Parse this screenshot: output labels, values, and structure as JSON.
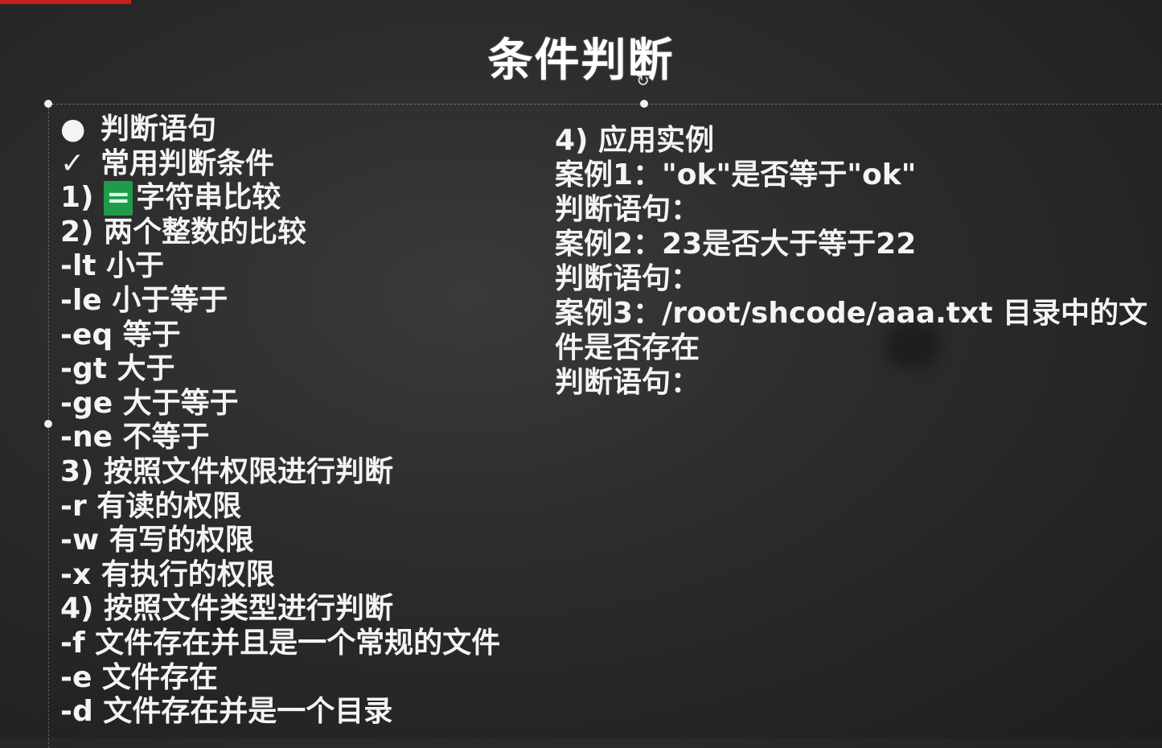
{
  "slide": {
    "title": "条件判断",
    "left": {
      "bullet_heading": "判断语句",
      "check_heading": "常用判断条件",
      "item1_prefix": "1)",
      "item1_mark": "=",
      "item1_text": "字符串比较",
      "lines": [
        "2) 两个整数的比较",
        "-lt 小于",
        "-le 小于等于",
        "-eq 等于",
        "-gt 大于",
        "-ge 大于等于",
        "-ne 不等于",
        "3) 按照文件权限进行判断",
        "-r 有读的权限",
        "-w 有写的权限",
        "-x 有执行的权限",
        "4) 按照文件类型进行判断",
        "-f 文件存在并且是一个常规的文件",
        "-e 文件存在",
        "-d 文件存在并是一个目录"
      ]
    },
    "right": {
      "lines": [
        "4) 应用实例",
        "案例1：\"ok\"是否等于\"ok\"",
        "判断语句：",
        "案例2：23是否大于等于22",
        "判断语句：",
        "案例3：/root/shcode/aaa.txt 目录中的文",
        "件是否存在",
        "判断语句："
      ]
    }
  },
  "icons": {
    "bullet": "bullet-dot-icon",
    "check": "checkmark-icon",
    "rotate": "rotate-handle-icon"
  },
  "colors": {
    "background": "#2b2b2b",
    "text": "#f4f4f4",
    "highlight": "#1e9c4a",
    "accent_bar": "#c8201e"
  }
}
